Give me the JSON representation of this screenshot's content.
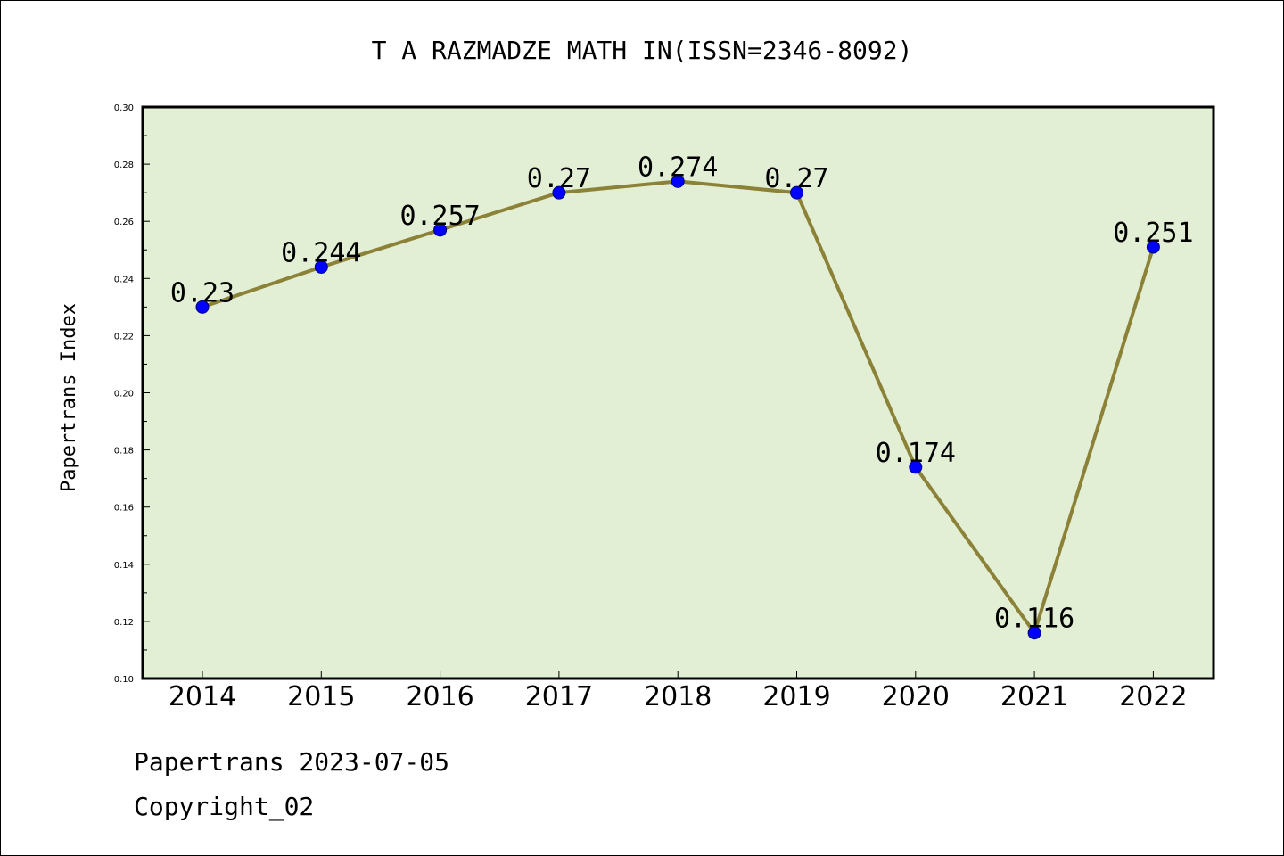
{
  "chart_data": {
    "type": "line",
    "title": "T A RAZMADZE MATH IN(ISSN=2346-8092)",
    "xlabel": "",
    "ylabel": "Papertrans Index",
    "categories": [
      "2014",
      "2015",
      "2016",
      "2017",
      "2018",
      "2019",
      "2020",
      "2021",
      "2022"
    ],
    "values": [
      0.23,
      0.244,
      0.257,
      0.27,
      0.274,
      0.27,
      0.174,
      0.116,
      0.251
    ],
    "data_labels": [
      "0.23",
      "0.244",
      "0.257",
      "0.27",
      "0.274",
      "0.27",
      "0.174",
      "0.116",
      "0.251"
    ],
    "ylim": [
      0.1,
      0.3
    ],
    "yticks": [
      "0.10",
      "0.12",
      "0.14",
      "0.16",
      "0.18",
      "0.20",
      "0.22",
      "0.24",
      "0.26",
      "0.28",
      "0.30"
    ],
    "grid": false,
    "colors": {
      "plot_background": "#e2efd5",
      "line": "#8b8238",
      "marker": "#0000ff"
    }
  },
  "footer": {
    "line1": "Papertrans 2023-07-05",
    "line2": "Copyright_02"
  }
}
